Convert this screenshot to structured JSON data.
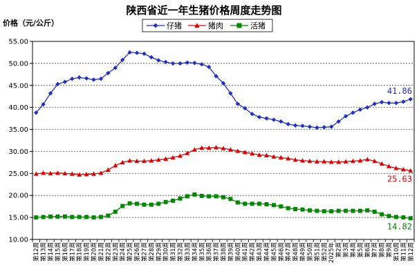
{
  "chart_data": {
    "type": "line",
    "title": "陕西省近一年生猪价格周度走势图",
    "ylabel": "价格（元/公斤）",
    "ylim": [
      10,
      55
    ],
    "yticks": [
      "10.00",
      "15.00",
      "20.00",
      "25.00",
      "30.00",
      "35.00",
      "40.00",
      "45.00",
      "50.00",
      "55.00"
    ],
    "grid": true,
    "legend_position": "top",
    "categories": [
      "第12周",
      "第13周",
      "第14周",
      "第15周",
      "第16周",
      "第17周",
      "第18周",
      "第19周",
      "第20周",
      "第21周",
      "第22周",
      "第23周",
      "第24周",
      "第25周",
      "第26周",
      "第27周",
      "第28周",
      "第29周",
      "第30周",
      "第31周",
      "第32周",
      "第33周",
      "第34周",
      "第35周",
      "第36周",
      "第37周",
      "第38周",
      "第39周",
      "第40周",
      "第41周",
      "第42周",
      "第43周",
      "第44周",
      "第45周",
      "第46周",
      "第47周",
      "第48周",
      "第49周",
      "第50周",
      "第51周",
      "第52周",
      "2025年",
      "第2周",
      "第3周",
      "第4周",
      "第5周",
      "第6周",
      "第7周",
      "第8周",
      "第9周",
      "第10周",
      "第11周",
      "第12周"
    ],
    "series": [
      {
        "name": "仔猪",
        "color": "#1f2fc8",
        "marker": "diamond",
        "values": [
          38.8,
          40.7,
          43.2,
          45.3,
          45.8,
          46.5,
          46.8,
          46.6,
          46.3,
          46.5,
          47.8,
          49.0,
          50.8,
          52.5,
          52.4,
          52.2,
          51.4,
          50.7,
          50.3,
          50.0,
          50.0,
          50.2,
          50.1,
          49.8,
          49.2,
          47.1,
          45.5,
          43.2,
          40.8,
          39.8,
          38.5,
          37.8,
          37.5,
          37.2,
          36.8,
          36.2,
          35.9,
          35.8,
          35.6,
          35.4,
          35.5,
          35.6,
          36.8,
          38.0,
          38.8,
          39.5,
          40.0,
          40.8,
          41.2,
          41.0,
          41.0,
          41.3,
          41.86
        ],
        "end_label": "41.86"
      },
      {
        "name": "猪肉",
        "color": "#e00000",
        "marker": "triangle",
        "values": [
          24.9,
          25.1,
          25.0,
          25.1,
          25.0,
          24.9,
          24.7,
          24.8,
          24.9,
          25.1,
          25.8,
          26.8,
          27.5,
          27.9,
          27.8,
          27.8,
          27.9,
          28.1,
          28.3,
          28.6,
          29.0,
          29.6,
          30.4,
          30.8,
          30.8,
          30.9,
          30.7,
          30.4,
          30.1,
          29.8,
          29.5,
          29.2,
          29.1,
          28.8,
          28.6,
          28.4,
          28.1,
          27.9,
          27.8,
          27.7,
          27.7,
          27.6,
          27.6,
          27.7,
          27.8,
          27.9,
          28.2,
          27.8,
          27.2,
          26.6,
          26.2,
          25.9,
          25.63
        ],
        "end_label": "25.63"
      },
      {
        "name": "活猪",
        "color": "#008800",
        "marker": "square",
        "values": [
          15.0,
          15.1,
          15.2,
          15.2,
          15.2,
          15.1,
          15.1,
          15.1,
          15.0,
          15.1,
          15.4,
          16.3,
          17.6,
          18.2,
          18.1,
          17.9,
          17.9,
          18.1,
          18.5,
          18.8,
          19.3,
          19.8,
          20.2,
          19.9,
          19.8,
          19.8,
          19.6,
          19.2,
          18.4,
          18.1,
          18.1,
          18.1,
          18.0,
          17.8,
          17.5,
          17.1,
          16.9,
          16.8,
          16.6,
          16.5,
          16.4,
          16.4,
          16.5,
          16.5,
          16.5,
          16.5,
          16.6,
          16.3,
          15.7,
          15.3,
          15.1,
          15.0,
          14.82
        ],
        "end_label": "14.82"
      }
    ]
  }
}
